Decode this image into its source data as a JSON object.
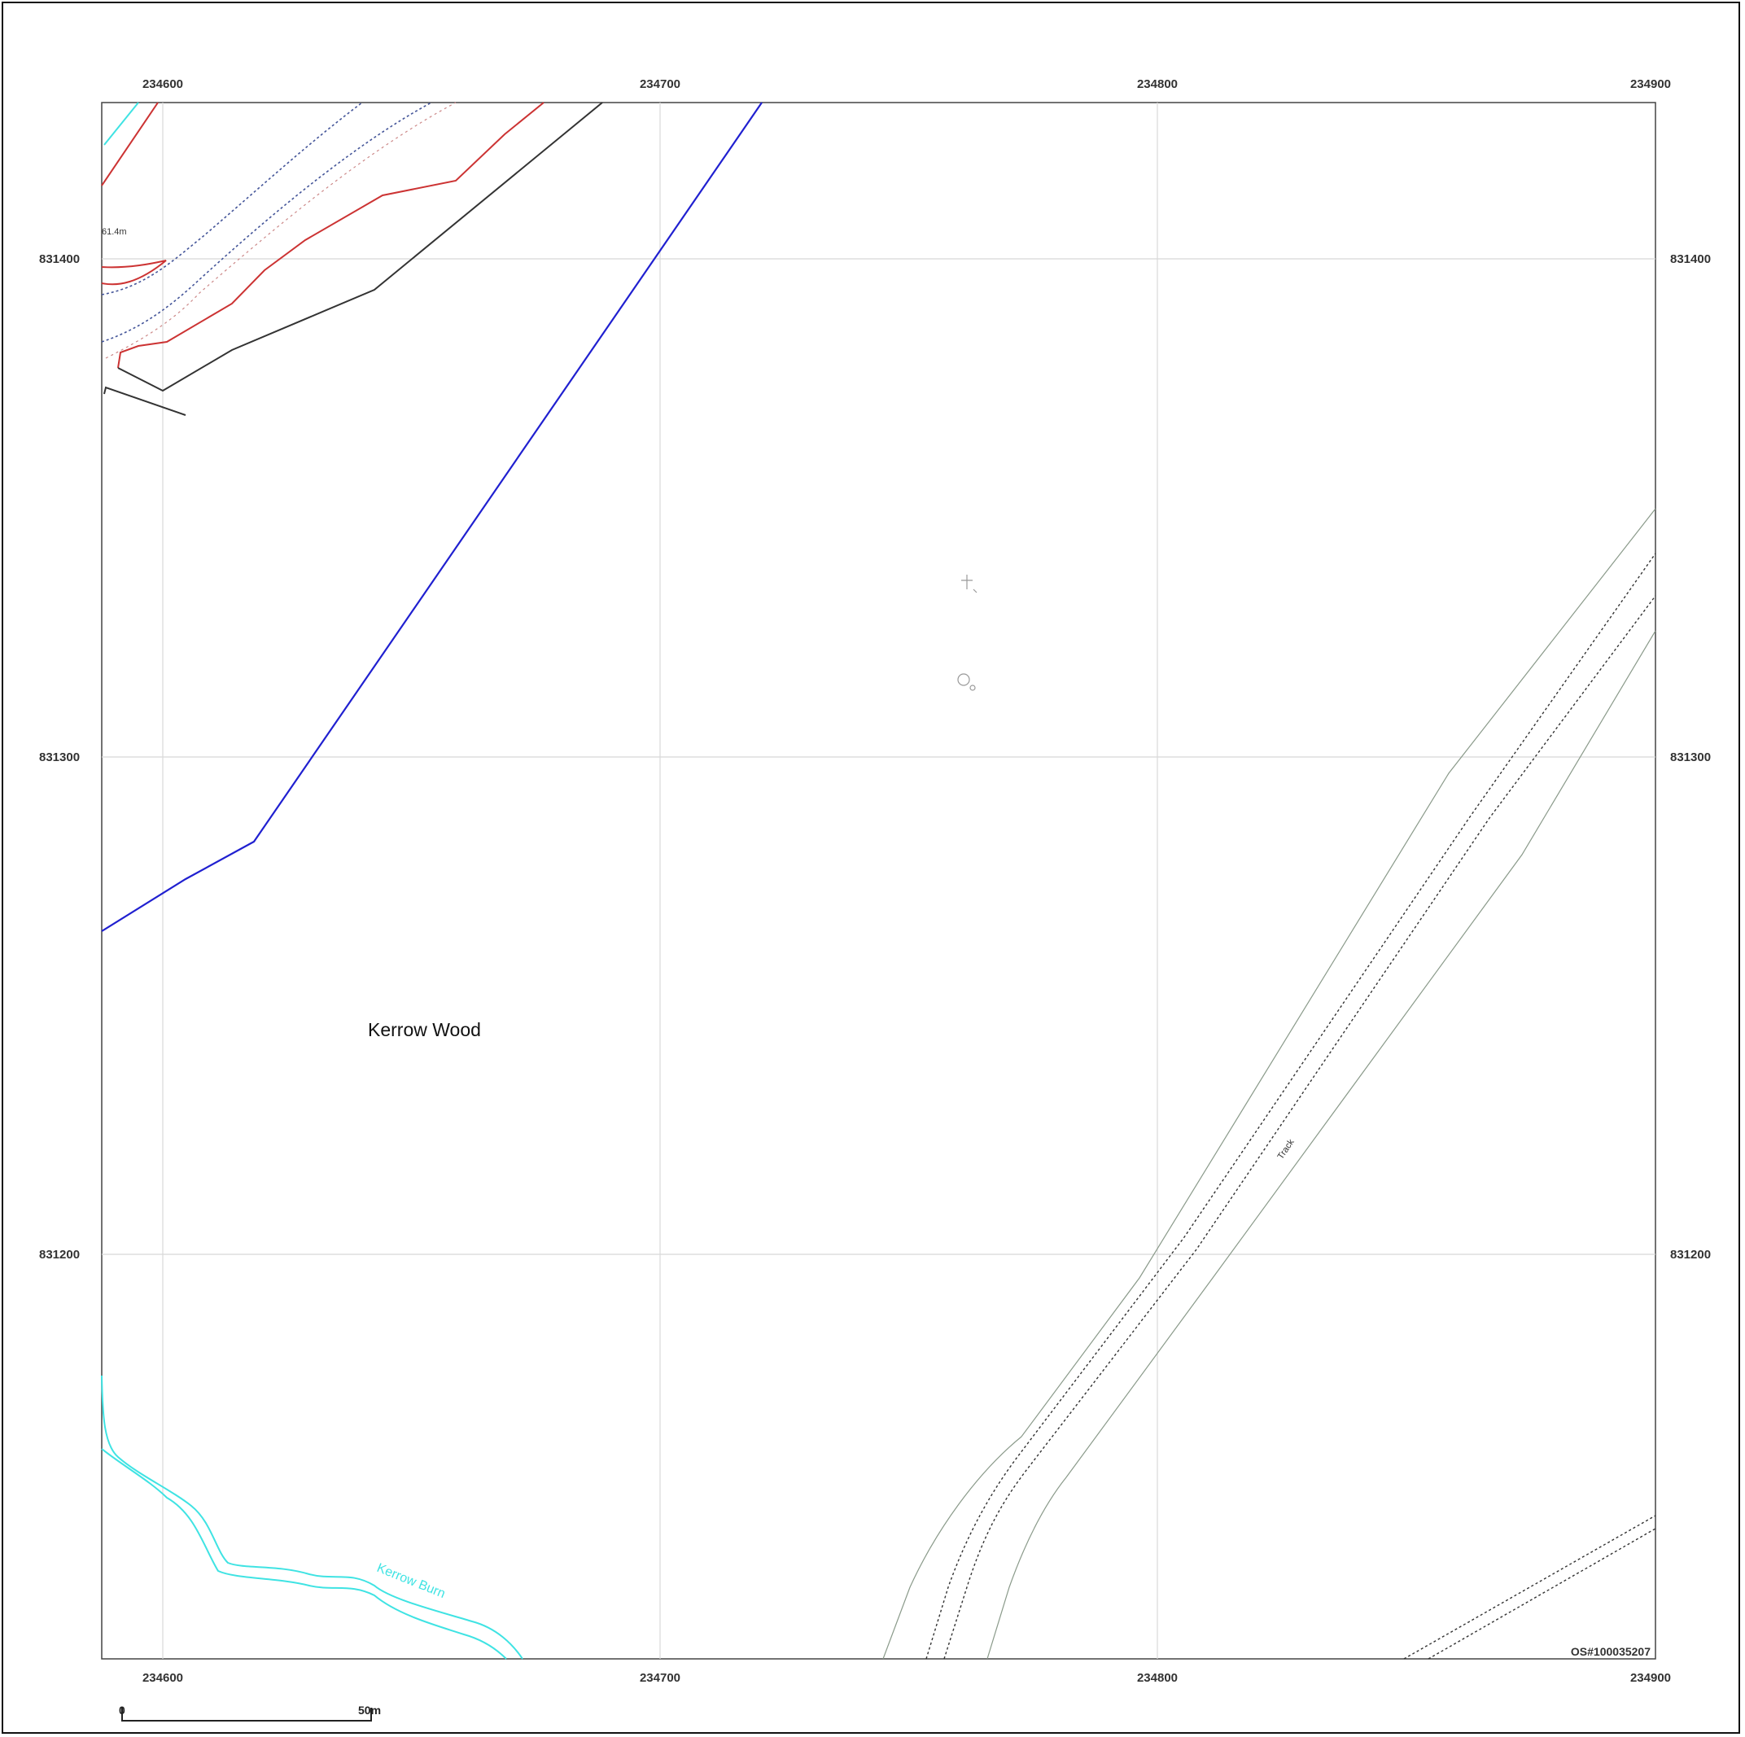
{
  "map": {
    "grid": {
      "eastings_top": [
        "234600",
        "234700",
        "234800",
        "234900"
      ],
      "eastings_bottom": [
        "234600",
        "234700",
        "234800",
        "234900"
      ],
      "northings_left": [
        "831400",
        "831300",
        "831200"
      ],
      "northings_right": [
        "831400",
        "831300",
        "831200"
      ]
    },
    "labels": {
      "place_name": "Kerrow Wood",
      "spot_height": "61.4m",
      "stream": "Kerrow Burn",
      "track": "Track",
      "copyright": "OS#100035207"
    },
    "scale_bar": {
      "start": "0",
      "end": "50m"
    },
    "colors": {
      "boundary_blue": "#2020d0",
      "contour_red": "#cc3333",
      "stream_cyan": "#3fe3e3",
      "track_grey": "#8a9a8a",
      "grid": "#d8d8d8"
    }
  }
}
